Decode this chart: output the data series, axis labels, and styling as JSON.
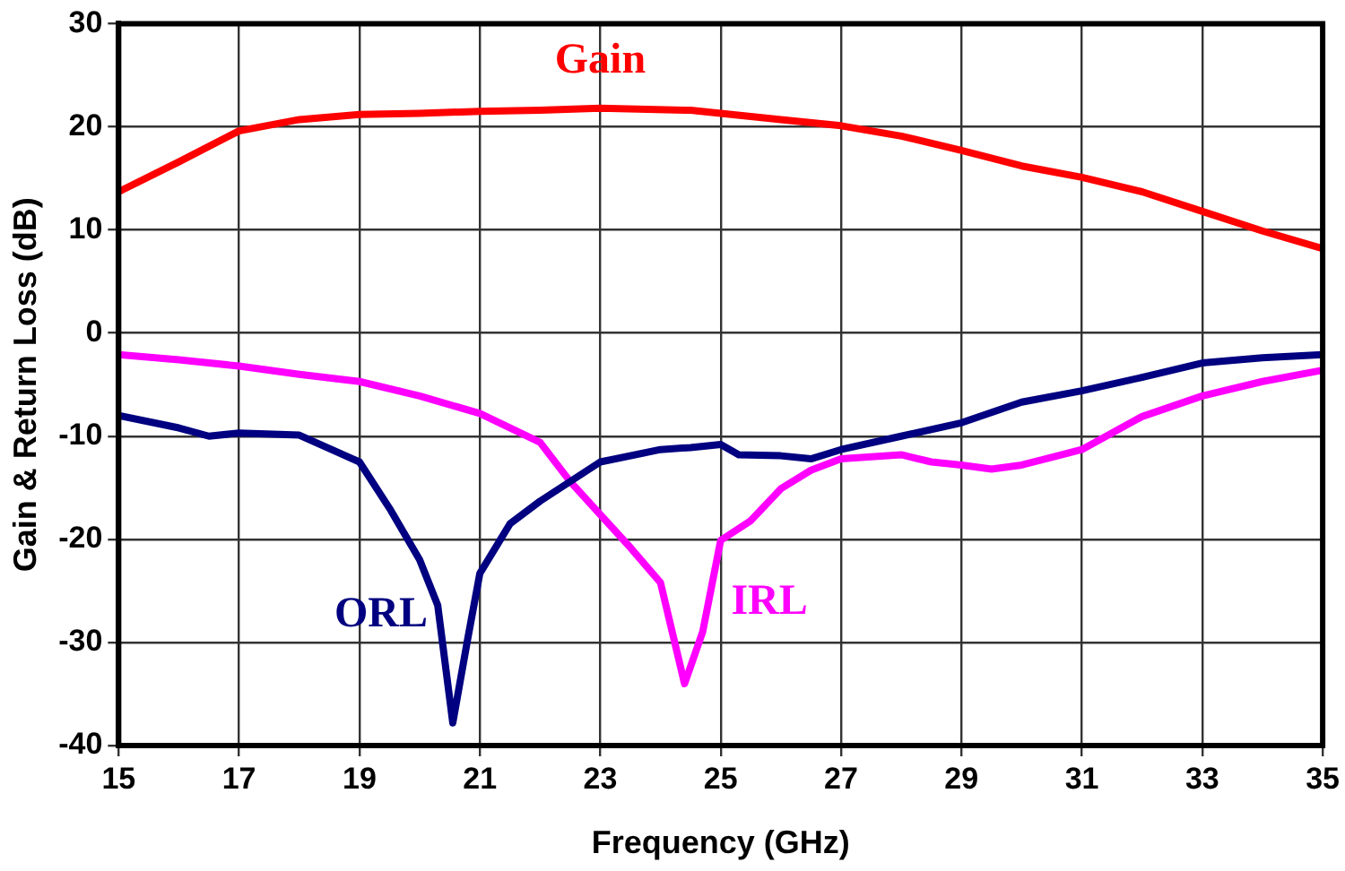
{
  "chart_data": {
    "type": "line",
    "xlabel": "Frequency (GHz)",
    "ylabel": "Gain & Return Loss (dB)",
    "xlim": [
      15,
      35
    ],
    "xticks": [
      15,
      17,
      19,
      21,
      23,
      25,
      27,
      29,
      31,
      33,
      35
    ],
    "ylim": [
      -40,
      30
    ],
    "yticks": [
      -40,
      -30,
      -20,
      -10,
      0,
      10,
      20,
      30
    ],
    "grid": true,
    "legend": false,
    "marker": "none",
    "line_style": "solid",
    "series": [
      {
        "name": "Gain",
        "color": "#ff0000",
        "x": [
          15,
          16,
          17,
          18,
          19,
          20,
          21,
          22,
          23,
          24.5,
          25,
          26,
          27,
          28,
          29,
          30,
          31,
          32,
          33,
          34,
          35
        ],
        "values": [
          13.7,
          16.6,
          19.6,
          20.7,
          21.2,
          21.3,
          21.5,
          21.6,
          21.8,
          21.6,
          21.3,
          20.7,
          20.1,
          19.1,
          17.7,
          16.2,
          15.1,
          13.7,
          11.8,
          9.9,
          8.2
        ]
      },
      {
        "name": "ORL",
        "color": "#000080",
        "x": [
          15,
          16,
          16.5,
          17,
          18,
          19,
          19.5,
          20,
          20.3,
          20.55,
          20.8,
          21,
          21.5,
          22,
          23,
          24,
          24.5,
          25,
          25.3,
          26,
          26.5,
          27,
          28,
          29,
          30,
          31,
          32,
          33,
          34,
          35
        ],
        "values": [
          -8,
          -9.2,
          -10,
          -9.7,
          -9.9,
          -12.5,
          -17,
          -22,
          -26.4,
          -37.8,
          -29.6,
          -23.3,
          -18.5,
          -16.3,
          -12.5,
          -11.3,
          -11.1,
          -10.8,
          -11.8,
          -11.9,
          -12.2,
          -11.3,
          -10,
          -8.7,
          -6.7,
          -5.6,
          -4.3,
          -2.9,
          -2.4,
          -2.1
        ]
      },
      {
        "name": "IRL",
        "color": "#ff00ff",
        "x": [
          15,
          16,
          17,
          18,
          19,
          20,
          21,
          22,
          22.5,
          23,
          23.5,
          24,
          24.4,
          24.7,
          25,
          25.5,
          26,
          26.5,
          27,
          28,
          28.5,
          29,
          29.5,
          30,
          31,
          32,
          33,
          34,
          35
        ],
        "values": [
          -2.1,
          -2.6,
          -3.2,
          -4,
          -4.7,
          -6.1,
          -7.8,
          -10.6,
          -14.4,
          -17.6,
          -20.8,
          -24.2,
          -34,
          -29,
          -20.1,
          -18.2,
          -15.1,
          -13.3,
          -12.2,
          -11.8,
          -12.5,
          -12.8,
          -13.2,
          -12.8,
          -11.3,
          -8.1,
          -6.1,
          -4.7,
          -3.6
        ]
      }
    ]
  }
}
